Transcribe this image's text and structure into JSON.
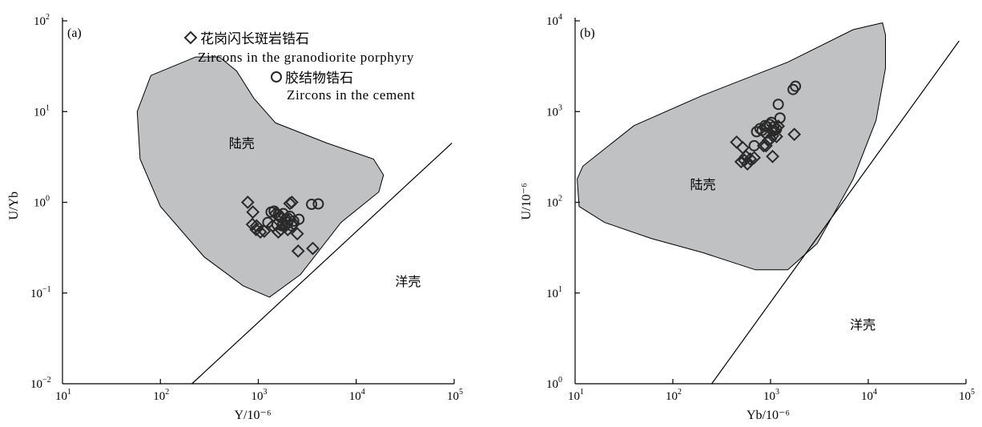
{
  "legend": {
    "granodiorite_cn": "花岗闪长斑岩锆石",
    "granodiorite_en": "Zircons in the granodiorite porphyry",
    "cement_cn": "胶结物锆石",
    "cement_en": "Zircons in the cement"
  },
  "chart_data": [
    {
      "type": "scatter",
      "panel_label": "(a)",
      "xlabel": "Y/10⁻⁶",
      "ylabel": "U/Yb",
      "x_scale": "log",
      "y_scale": "log",
      "xlim": [
        10,
        100000
      ],
      "ylim": [
        0.01,
        100
      ],
      "x_ticks": [
        {
          "base": "10",
          "exp": "1"
        },
        {
          "base": "10",
          "exp": "2"
        },
        {
          "base": "10",
          "exp": "3"
        },
        {
          "base": "10",
          "exp": "4"
        },
        {
          "base": "10",
          "exp": "5"
        }
      ],
      "y_ticks": [
        {
          "base": "10",
          "exp": "−2"
        },
        {
          "base": "10",
          "exp": "−1"
        },
        {
          "base": "10",
          "exp": "0"
        },
        {
          "base": "10",
          "exp": "1"
        },
        {
          "base": "10",
          "exp": "2"
        }
      ],
      "field_labels": {
        "continental": "陆壳",
        "oceanic": "洋壳"
      },
      "field_oceanic_pos": [
        25000,
        0.12
      ],
      "field_continental_pos": [
        500,
        4.0
      ],
      "continental_field": [
        [
          230,
          40
        ],
        [
          80,
          25
        ],
        [
          58,
          10
        ],
        [
          62,
          3
        ],
        [
          100,
          0.9
        ],
        [
          280,
          0.25
        ],
        [
          700,
          0.12
        ],
        [
          1300,
          0.09
        ],
        [
          2700,
          0.16
        ],
        [
          7000,
          0.6
        ],
        [
          17000,
          1.3
        ],
        [
          19000,
          2.0
        ],
        [
          15000,
          3.0
        ],
        [
          5000,
          4.5
        ],
        [
          1500,
          7.5
        ],
        [
          900,
          14
        ],
        [
          600,
          28
        ],
        [
          400,
          40
        ]
      ],
      "boundary_line": [
        [
          210,
          0.01
        ],
        [
          95000,
          4.5
        ]
      ],
      "series": [
        {
          "name": "Zircons in the granodiorite porphyry",
          "marker": "diamond",
          "points": [
            [
              780,
              1.0
            ],
            [
              880,
              0.78
            ],
            [
              950,
              0.5
            ],
            [
              1050,
              0.47
            ],
            [
              1150,
              0.48
            ],
            [
              870,
              0.57
            ],
            [
              960,
              0.55
            ],
            [
              1400,
              0.55
            ],
            [
              1600,
              0.47
            ],
            [
              1700,
              0.5
            ],
            [
              1800,
              0.58
            ],
            [
              1900,
              0.55
            ],
            [
              2000,
              0.5
            ],
            [
              2100,
              0.65
            ],
            [
              2300,
              0.58
            ],
            [
              2500,
              0.45
            ],
            [
              2200,
              1.0
            ],
            [
              2100,
              0.97
            ],
            [
              1500,
              0.75
            ],
            [
              1650,
              0.7
            ],
            [
              2550,
              0.29
            ],
            [
              3600,
              0.31
            ]
          ]
        },
        {
          "name": "Zircons in the cement",
          "marker": "circle",
          "points": [
            [
              1250,
              0.6
            ],
            [
              1350,
              0.78
            ],
            [
              1450,
              0.8
            ],
            [
              1600,
              0.73
            ],
            [
              1700,
              0.68
            ],
            [
              1800,
              0.75
            ],
            [
              1900,
              0.65
            ],
            [
              2000,
              0.6
            ],
            [
              2100,
              0.7
            ],
            [
              2200,
              0.55
            ],
            [
              2300,
              0.62
            ],
            [
              2600,
              0.65
            ],
            [
              3500,
              0.95
            ],
            [
              4100,
              0.96
            ],
            [
              1550,
              0.57
            ],
            [
              1750,
              0.55
            ]
          ]
        }
      ]
    },
    {
      "type": "scatter",
      "panel_label": "(b)",
      "xlabel": "Yb/10⁻⁶",
      "ylabel": "U/10⁻⁶",
      "x_scale": "log",
      "y_scale": "log",
      "xlim": [
        10,
        100000
      ],
      "ylim": [
        1,
        10000
      ],
      "x_ticks": [
        {
          "base": "10",
          "exp": "1"
        },
        {
          "base": "10",
          "exp": "2"
        },
        {
          "base": "10",
          "exp": "3"
        },
        {
          "base": "10",
          "exp": "4"
        },
        {
          "base": "10",
          "exp": "5"
        }
      ],
      "y_ticks": [
        {
          "base": "10",
          "exp": "0"
        },
        {
          "base": "10",
          "exp": "1"
        },
        {
          "base": "10",
          "exp": "2"
        },
        {
          "base": "10",
          "exp": "3"
        },
        {
          "base": "10",
          "exp": "4"
        }
      ],
      "field_labels": {
        "continental": "陆壳",
        "oceanic": "洋壳"
      },
      "field_oceanic_pos": [
        6500,
        4.0
      ],
      "field_continental_pos": [
        150,
        140
      ],
      "continental_field": [
        [
          10.5,
          180
        ],
        [
          12,
          250
        ],
        [
          40,
          700
        ],
        [
          200,
          1500
        ],
        [
          1500,
          3500
        ],
        [
          7000,
          8000
        ],
        [
          14000,
          9500
        ],
        [
          15000,
          7000
        ],
        [
          15000,
          3000
        ],
        [
          12000,
          800
        ],
        [
          7000,
          180
        ],
        [
          3000,
          35
        ],
        [
          1500,
          18
        ],
        [
          700,
          18
        ],
        [
          200,
          28
        ],
        [
          60,
          40
        ],
        [
          20,
          60
        ],
        [
          11,
          90
        ]
      ],
      "boundary_line": [
        [
          250,
          1
        ],
        [
          85000,
          6000
        ]
      ],
      "series": [
        {
          "name": "Zircons in the granodiorite porphyry",
          "marker": "diamond",
          "points": [
            [
              450,
              460
            ],
            [
              520,
              400
            ],
            [
              560,
              320
            ],
            [
              540,
              290
            ],
            [
              500,
              280
            ],
            [
              580,
              265
            ],
            [
              620,
              300
            ],
            [
              680,
              310
            ],
            [
              850,
              420
            ],
            [
              900,
              420
            ],
            [
              950,
              480
            ],
            [
              1000,
              500
            ],
            [
              1050,
              540
            ],
            [
              1150,
              530
            ],
            [
              1200,
              690
            ],
            [
              1100,
              620
            ],
            [
              1750,
              560
            ],
            [
              1050,
              320
            ]
          ]
        },
        {
          "name": "Zircons in the cement",
          "marker": "circle",
          "points": [
            [
              680,
              420
            ],
            [
              720,
              600
            ],
            [
              780,
              650
            ],
            [
              820,
              620
            ],
            [
              880,
              700
            ],
            [
              920,
              680
            ],
            [
              980,
              720
            ],
            [
              1020,
              760
            ],
            [
              1080,
              680
            ],
            [
              1150,
              640
            ],
            [
              1200,
              1200
            ],
            [
              1250,
              850
            ],
            [
              1700,
              1750
            ],
            [
              1800,
              1900
            ],
            [
              1050,
              620
            ],
            [
              900,
              580
            ]
          ]
        }
      ]
    }
  ]
}
